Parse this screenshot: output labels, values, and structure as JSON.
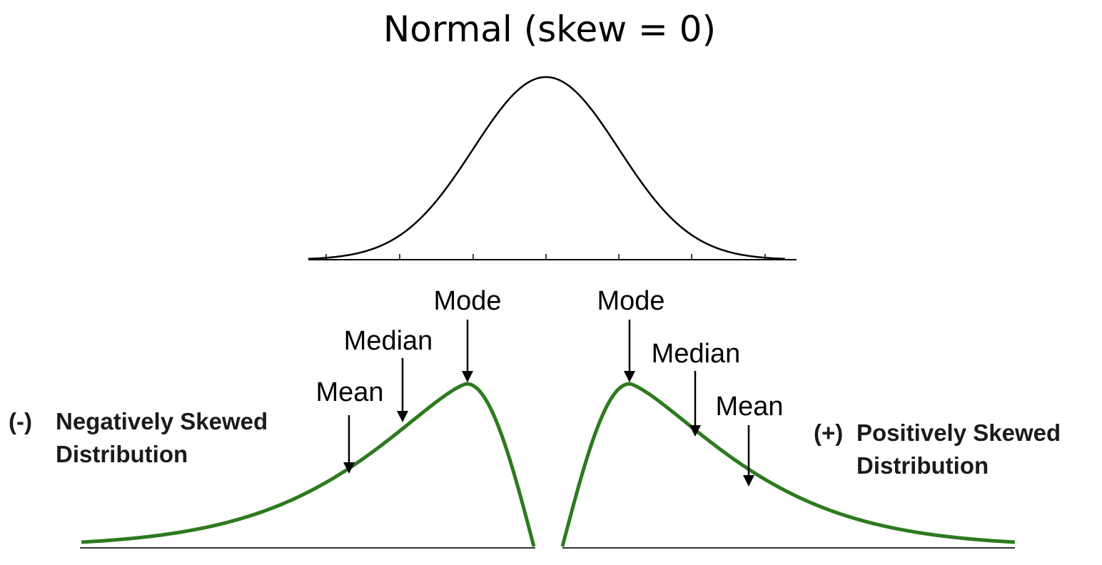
{
  "title": "Normal (skew = 0)",
  "colors": {
    "normal_curve": "#000000",
    "skew_curve": "#2d7a1f"
  },
  "negative": {
    "label_sign": "(-)",
    "label_line1": "Negatively Skewed",
    "label_line2": "Distribution",
    "markers": {
      "mode": "Mode",
      "median": "Median",
      "mean": "Mean"
    }
  },
  "positive": {
    "label_sign": "(+)",
    "label_line1": "Positively Skewed",
    "label_line2": "Distribution",
    "markers": {
      "mode": "Mode",
      "median": "Median",
      "mean": "Mean"
    }
  }
}
